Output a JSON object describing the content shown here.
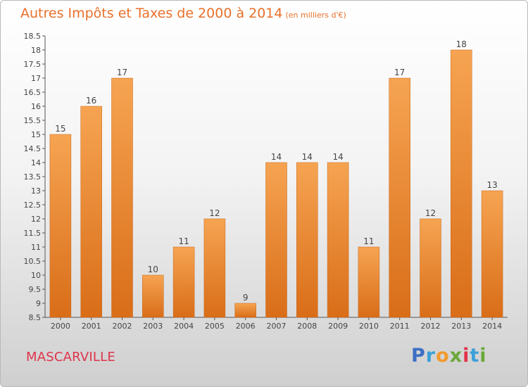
{
  "chart_data": {
    "type": "bar",
    "title": "Autres Impôts et Taxes de 2000 à 2014",
    "unit_label": "(en milliers d'€)",
    "categories": [
      "2000",
      "2001",
      "2002",
      "2003",
      "2004",
      "2005",
      "2006",
      "2007",
      "2008",
      "2009",
      "2010",
      "2011",
      "2012",
      "2013",
      "2014"
    ],
    "values": [
      15,
      16,
      17,
      10,
      11,
      12,
      9,
      14,
      14,
      14,
      11,
      17,
      12,
      18,
      13
    ],
    "ylim": [
      8.5,
      18.5
    ],
    "yticks": [
      "8.5",
      "9",
      "9.5",
      "10",
      "10.5",
      "11",
      "11.5",
      "12",
      "12.5",
      "13",
      "13.5",
      "14",
      "14.5",
      "15",
      "15.5",
      "16",
      "16.5",
      "17",
      "17.5",
      "18",
      "18.5"
    ],
    "grid": false,
    "bar_color": "#f2933f"
  },
  "location": "MASCARVILLE",
  "brand": {
    "letters": [
      "P",
      "r",
      "o",
      "x",
      "i",
      "t",
      "i"
    ],
    "colors": [
      "#3b6fc4",
      "#3aa0d8",
      "#f29a2e",
      "#6aa83a",
      "#e0324a",
      "#3aa0d8",
      "#6aa83a"
    ]
  }
}
